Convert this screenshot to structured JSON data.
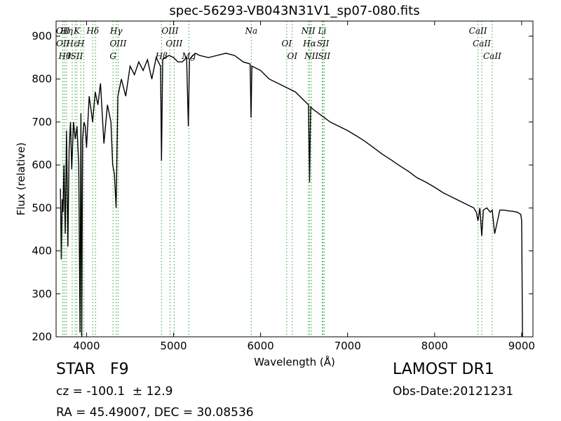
{
  "chart_data": {
    "type": "line",
    "title": "spec-56293-VB043N31V1_sp07-080.fits",
    "xlabel": "Wavelength (Å)",
    "ylabel": "Flux (relative)",
    "xlim": [
      3650,
      9130
    ],
    "ylim": [
      200,
      935
    ],
    "x_ticks": [
      4000,
      5000,
      6000,
      7000,
      8000,
      9000
    ],
    "y_ticks": [
      200,
      300,
      400,
      500,
      600,
      700,
      800,
      900
    ],
    "line_color": "#000000",
    "marker_color": "#2ca02c",
    "grid": false,
    "series": [
      {
        "x": [
          3700,
          3710,
          3720,
          3730,
          3740,
          3755,
          3770,
          3785,
          3800,
          3815,
          3830,
          3850,
          3870,
          3890,
          3910,
          3925,
          3935,
          3945,
          3955,
          3970,
          3985,
          4000,
          4030,
          4070,
          4100,
          4130,
          4160,
          4200,
          4240,
          4280,
          4300,
          4320,
          4340,
          4360,
          4400,
          4450,
          4500,
          4550,
          4600,
          4650,
          4700,
          4750,
          4800,
          4850,
          4861,
          4875,
          4900,
          4950,
          5000,
          5050,
          5100,
          5150,
          5170,
          5183,
          5200,
          5250,
          5300,
          5400,
          5500,
          5600,
          5700,
          5800,
          5880,
          5890,
          5900,
          6000,
          6100,
          6200,
          6300,
          6400,
          6500,
          6550,
          6563,
          6575,
          6600,
          6700,
          6800,
          6900,
          7000,
          7100,
          7200,
          7300,
          7400,
          7500,
          7600,
          7700,
          7800,
          7900,
          8000,
          8100,
          8200,
          8300,
          8400,
          8450,
          8480,
          8498,
          8520,
          8542,
          8560,
          8600,
          8640,
          8662,
          8690,
          8750,
          8800,
          8850,
          8900,
          8950,
          8990,
          9000,
          9010
        ],
        "y": [
          545,
          380,
          520,
          490,
          600,
          440,
          680,
          410,
          640,
          700,
          590,
          700,
          660,
          690,
          600,
          210,
          720,
          200,
          660,
          700,
          690,
          640,
          760,
          700,
          770,
          740,
          790,
          650,
          740,
          700,
          600,
          580,
          500,
          760,
          800,
          760,
          830,
          810,
          840,
          820,
          845,
          800,
          850,
          830,
          610,
          845,
          850,
          855,
          850,
          840,
          840,
          850,
          690,
          845,
          850,
          860,
          855,
          850,
          855,
          860,
          855,
          840,
          835,
          710,
          830,
          820,
          800,
          790,
          780,
          770,
          750,
          740,
          560,
          735,
          730,
          715,
          700,
          690,
          680,
          668,
          655,
          640,
          625,
          612,
          598,
          585,
          570,
          560,
          548,
          535,
          525,
          515,
          505,
          500,
          490,
          470,
          500,
          435,
          495,
          500,
          490,
          495,
          440,
          495,
          495,
          493,
          492,
          490,
          485,
          470,
          200
        ]
      }
    ],
    "line_markers": [
      {
        "x": 3727,
        "label": "OII"
      },
      {
        "x": 3729,
        "label": "OII"
      },
      {
        "x": 3750,
        "label": "Hθ"
      },
      {
        "x": 3771,
        "label": "Hη"
      },
      {
        "x": 3835,
        "label": "Hε"
      },
      {
        "x": 3869,
        "label": "ISII"
      },
      {
        "x": 3889,
        "label": "K"
      },
      {
        "x": 3934,
        "label": "H"
      },
      {
        "x": 3969,
        "label": ""
      },
      {
        "x": 4071,
        "label": "Hδ"
      },
      {
        "x": 4102,
        "label": ""
      },
      {
        "x": 4304,
        "label": "G"
      },
      {
        "x": 4341,
        "label": "Hγ"
      },
      {
        "x": 4363,
        "label": "OIII"
      },
      {
        "x": 4861,
        "label": "Hβ"
      },
      {
        "x": 4959,
        "label": "OIII"
      },
      {
        "x": 5007,
        "label": "OIII"
      },
      {
        "x": 5175,
        "label": "Mg"
      },
      {
        "x": 5893,
        "label": "Na"
      },
      {
        "x": 6300,
        "label": "OI"
      },
      {
        "x": 6364,
        "label": "OI"
      },
      {
        "x": 6548,
        "label": "NII"
      },
      {
        "x": 6563,
        "label": "Hα"
      },
      {
        "x": 6584,
        "label": "NII"
      },
      {
        "x": 6708,
        "label": "Li"
      },
      {
        "x": 6717,
        "label": "SII"
      },
      {
        "x": 6731,
        "label": "SII"
      },
      {
        "x": 8498,
        "label": "CaII"
      },
      {
        "x": 8542,
        "label": "CaII"
      },
      {
        "x": 8662,
        "label": "CaII"
      }
    ]
  },
  "info": {
    "object_class": "STAR",
    "subclass": "F9",
    "survey": "LAMOST DR1",
    "cz": "cz = -100.1  ± 12.9",
    "obs_date": "Obs-Date:20121231",
    "coords": "RA = 45.49007, DEC = 30.08536"
  }
}
